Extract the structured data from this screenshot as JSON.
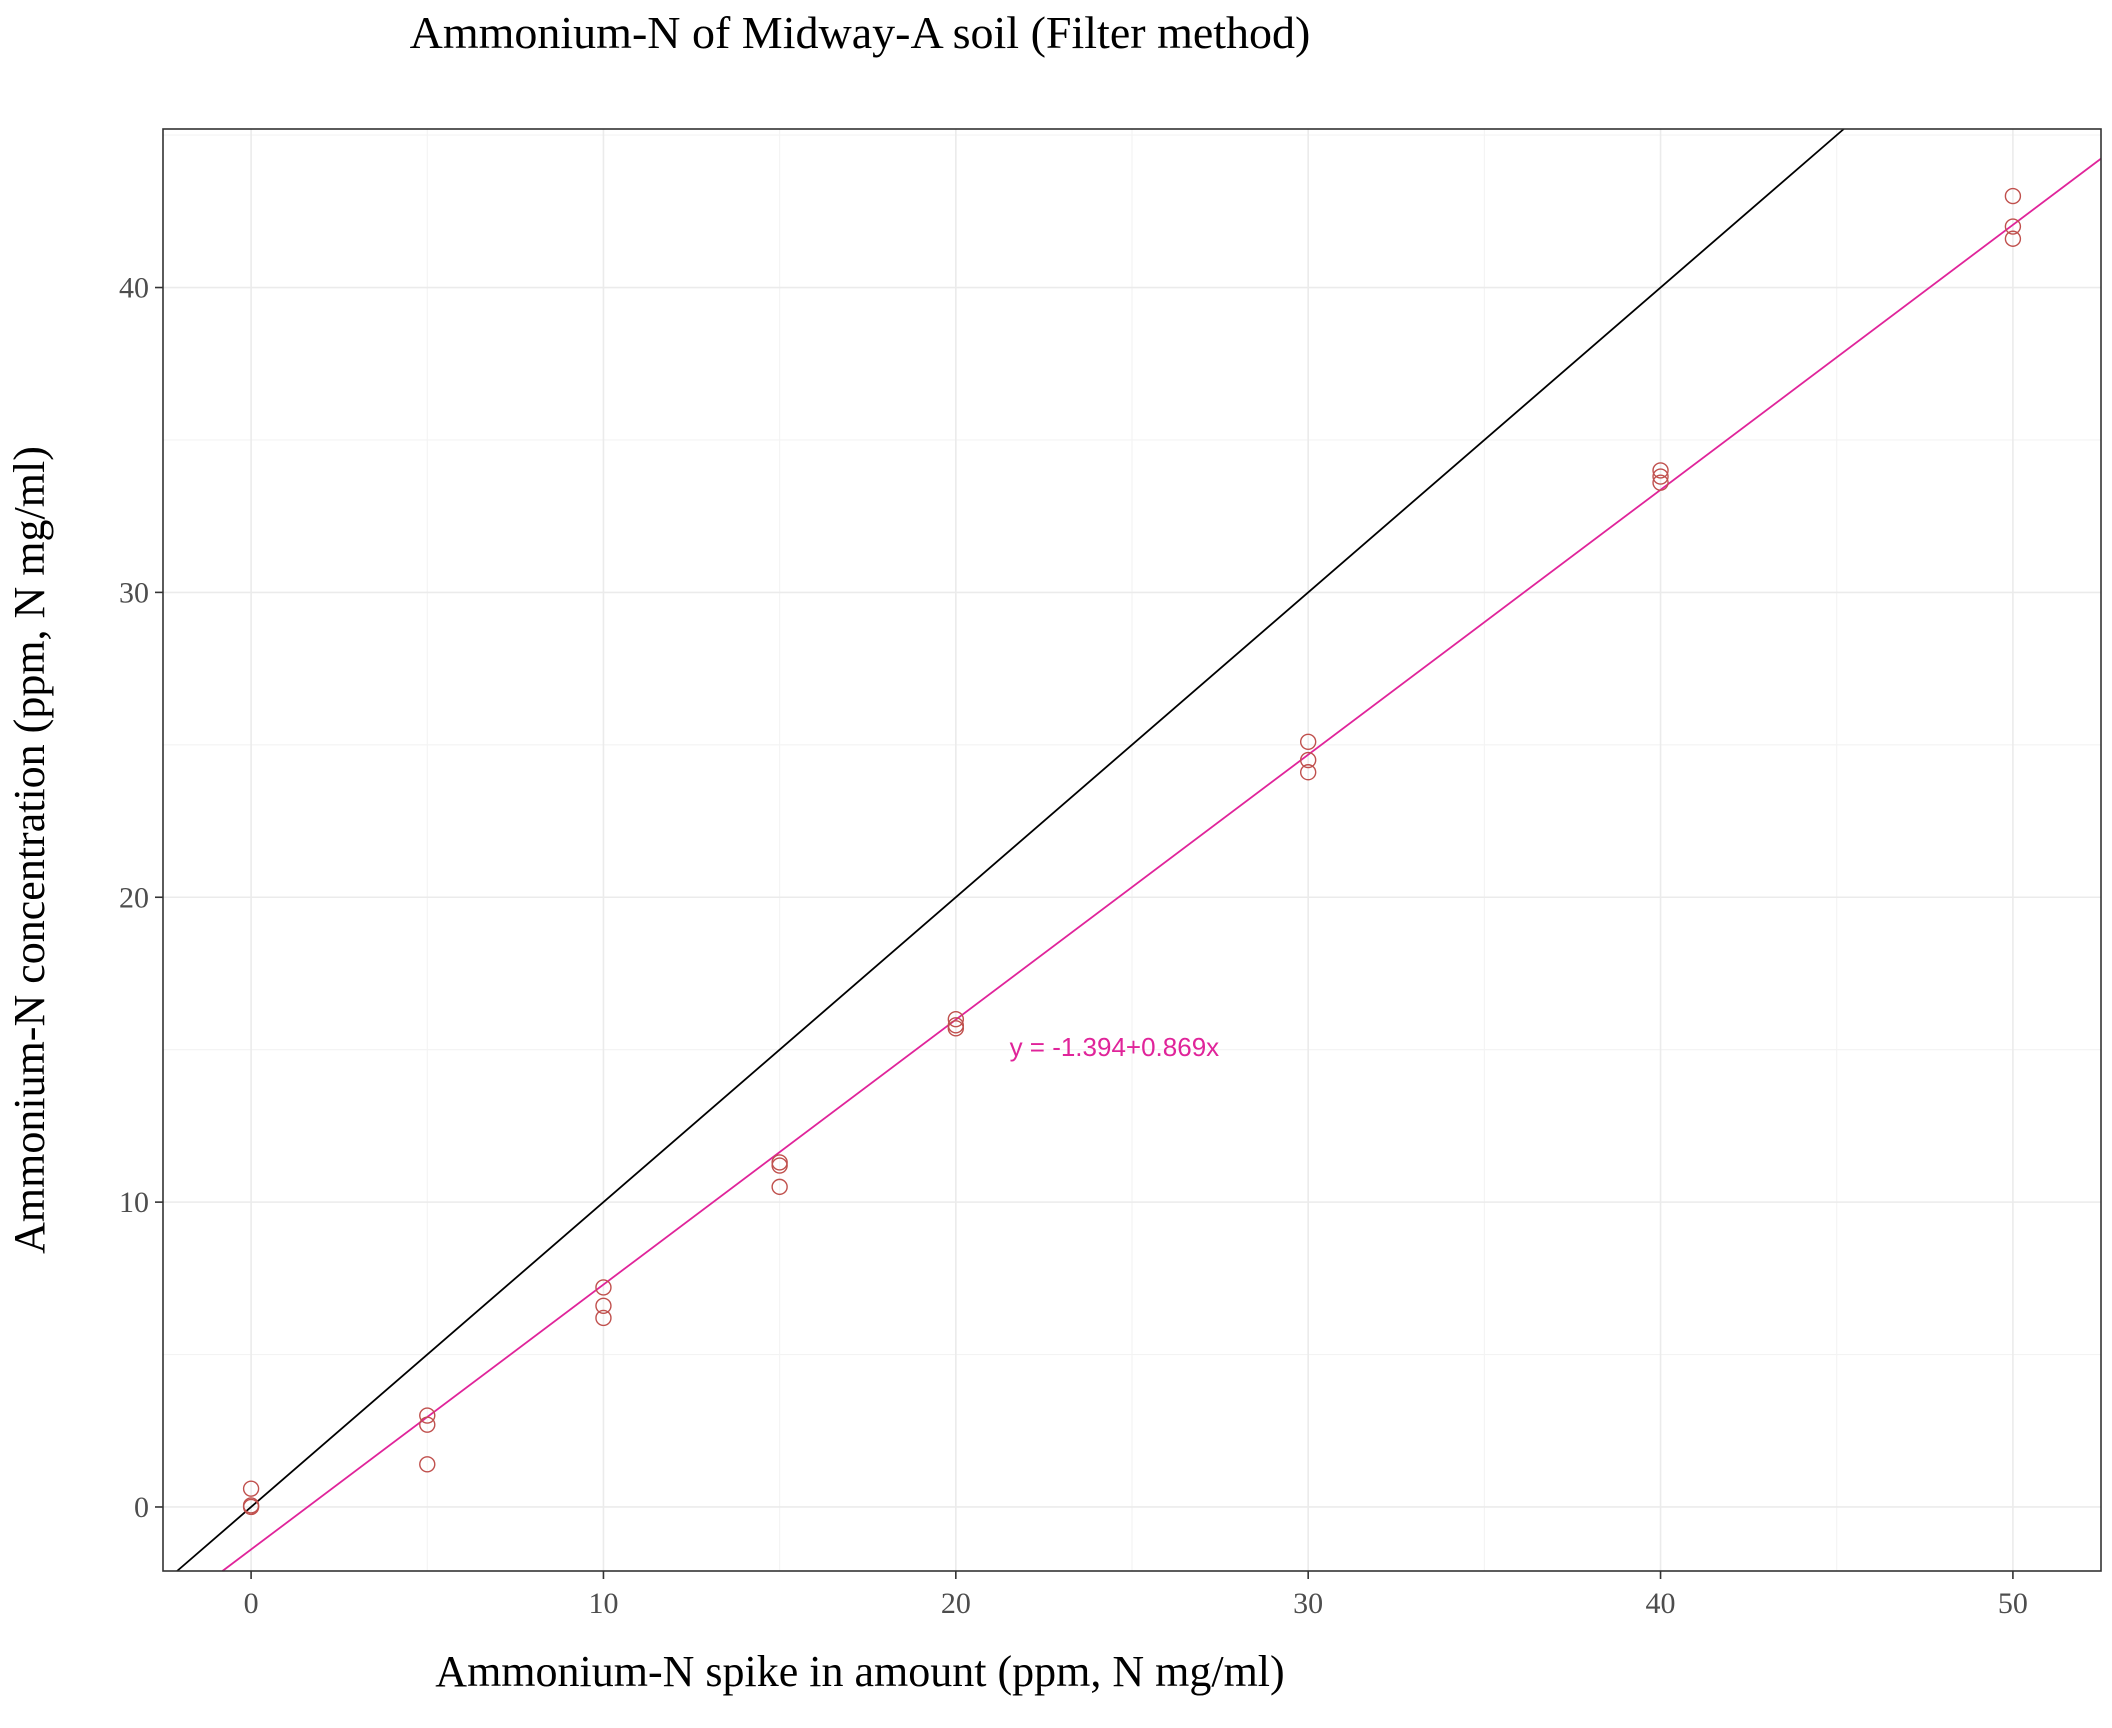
{
  "chart_data": {
    "type": "scatter",
    "title": "Ammonium-N of Midway-A soil (Filter method)",
    "xlabel": "Ammonium-N spike in amount (ppm, N mg/ml)",
    "ylabel": "Ammonium-N concentration (ppm, N mg/ml)",
    "xlim": [
      -2.5,
      52.5
    ],
    "ylim": [
      -2.1,
      45.2
    ],
    "x_ticks": [
      0,
      10,
      20,
      30,
      40,
      50
    ],
    "y_ticks": [
      0,
      10,
      20,
      30,
      40
    ],
    "x_tick_labels": [
      "0",
      "10",
      "20",
      "30",
      "40",
      "50"
    ],
    "y_tick_labels": [
      "0",
      "10",
      "20",
      "30",
      "40"
    ],
    "grid": true,
    "points": {
      "x": [
        0,
        0,
        0,
        5,
        5,
        5,
        10,
        10,
        10,
        15,
        15,
        15,
        20,
        20,
        20,
        30,
        30,
        30,
        40,
        40,
        40,
        50,
        50,
        50
      ],
      "y": [
        0.6,
        0.05,
        0.0,
        3.0,
        2.7,
        1.4,
        7.2,
        6.6,
        6.2,
        11.3,
        11.2,
        10.5,
        16.0,
        15.8,
        15.7,
        25.1,
        24.5,
        24.1,
        34.0,
        33.8,
        33.6,
        43.0,
        42.0,
        41.6
      ],
      "color": "#c0504d"
    },
    "lines": [
      {
        "kind": "reference",
        "intercept": 0,
        "slope": 1,
        "color": "#000000"
      },
      {
        "kind": "fit",
        "intercept": -1.394,
        "slope": 0.869,
        "color": "#e0249a"
      }
    ],
    "annotation": {
      "text": "y = -1.394+0.869x",
      "x": 24.5,
      "y": 14.8,
      "color": "#e0249a"
    }
  }
}
